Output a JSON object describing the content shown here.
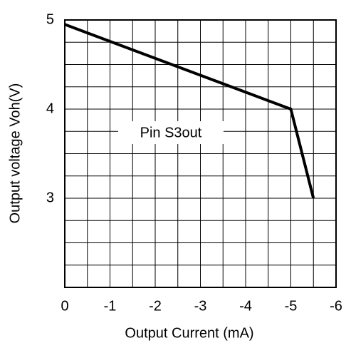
{
  "chart_data": {
    "type": "line",
    "x_label": "Output Current  (mA)",
    "y_label": "Output voltage Voh(V)",
    "annotation": "Pin S3out",
    "x": [
      0,
      -5,
      -5.5
    ],
    "series": [
      {
        "color": "#000000",
        "values": [
          4.95,
          4.0,
          3.0
        ]
      }
    ],
    "xlim": [
      0,
      -6
    ],
    "xticks": [
      0,
      -1,
      -2,
      -3,
      -4,
      -5,
      -6
    ],
    "ylim": [
      2,
      5
    ],
    "yticks": [
      3,
      4,
      5
    ],
    "grid": true,
    "grid_divisions": {
      "x": 2,
      "y": 4
    }
  }
}
